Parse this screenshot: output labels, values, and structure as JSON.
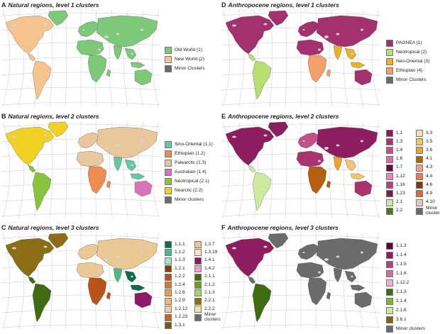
{
  "panels": [
    {
      "letter": "A",
      "title": "Natural regions, level 1 clusters",
      "legend": [
        {
          "label": "Old World (1)",
          "color": "#7ec87a"
        },
        {
          "label": "New World (2)",
          "color": "#f6c48e"
        },
        {
          "label": "Minor Clusters",
          "color": "#6b6b6b"
        }
      ]
    },
    {
      "letter": "D",
      "title": "Anthropocene regions, level 1 clusters",
      "legend": [
        {
          "label": "PAGNEA (1)",
          "color": "#a3306f"
        },
        {
          "label": "Neotropical (2)",
          "color": "#b6df6f"
        },
        {
          "label": "Neo-Oriental (3)",
          "color": "#e9b22a"
        },
        {
          "label": "Ethiopian (4)",
          "color": "#f2a06c"
        },
        {
          "label": "Minor Clusters",
          "color": "#6b6b6b"
        }
      ]
    },
    {
      "letter": "B",
      "title": "Natural regions, level 2 clusters",
      "legend": [
        {
          "label": "Sino-Oriental (1.1)",
          "color": "#62c9a2"
        },
        {
          "label": "Ethiopian (1.2)",
          "color": "#ee8c52"
        },
        {
          "label": "Palearctic (1.3)",
          "color": "#e8c79d"
        },
        {
          "label": "Australian (1.4)",
          "color": "#d873b9"
        },
        {
          "label": "Neotropical (2.1)",
          "color": "#8ac43c"
        },
        {
          "label": "Nearctic (2.2)",
          "color": "#f0d124"
        },
        {
          "label": "Minor clusters",
          "color": "#6b6b6b"
        }
      ]
    },
    {
      "letter": "E",
      "title": "Anthropocene regions, level 2 clusters",
      "legend_col1": [
        {
          "label": "1.1",
          "color": "#8e1d60"
        },
        {
          "label": "1.3",
          "color": "#a8336f"
        },
        {
          "label": "1.4",
          "color": "#c4508a"
        },
        {
          "label": "1.6",
          "color": "#d86fa2"
        },
        {
          "label": "1.7",
          "color": "#6e0b3f"
        },
        {
          "label": "1.12",
          "color": "#e889b5"
        },
        {
          "label": "1.16",
          "color": "#b23f7e"
        },
        {
          "label": "1.23",
          "color": "#7f1a4f"
        },
        {
          "label": "2.1",
          "color": "#cdeaa0"
        },
        {
          "label": "2.2",
          "color": "#4d7b1a"
        }
      ],
      "legend_col2": [
        {
          "label": "3.3",
          "color": "#f8e1b0"
        },
        {
          "label": "3.5",
          "color": "#f2c46c"
        },
        {
          "label": "3.6",
          "color": "#e9a62b"
        },
        {
          "label": "4.1",
          "color": "#b65f10"
        },
        {
          "label": "4.3",
          "color": "#f59f87"
        },
        {
          "label": "4.4",
          "color": "#ed7c4f"
        },
        {
          "label": "4.6",
          "color": "#7a3a12"
        },
        {
          "label": "4.9",
          "color": "#d86a32"
        },
        {
          "label": "4.10",
          "color": "#f9c3b8"
        },
        {
          "label": "Minor clusters",
          "color": "#6b6b6b"
        }
      ]
    },
    {
      "letter": "C",
      "title": "Natural regions, level 3 clusters",
      "legend_col1": [
        {
          "label": "1.1.1",
          "color": "#0f6b4c"
        },
        {
          "label": "1.1.2",
          "color": "#4fb889"
        },
        {
          "label": "1.1.3",
          "color": "#a7e3c6"
        },
        {
          "label": "1.2.1",
          "color": "#8a3b0a"
        },
        {
          "label": "1.2.2",
          "color": "#b8541a"
        },
        {
          "label": "1.2.4",
          "color": "#d77b33"
        },
        {
          "label": "1.2.6",
          "color": "#e99a52"
        },
        {
          "label": "1.2.9",
          "color": "#f2b57c"
        },
        {
          "label": "1.2.12",
          "color": "#f7cba1"
        },
        {
          "label": "1.2.23",
          "color": "#c2691f"
        },
        {
          "label": "1.3.1",
          "color": "#7a5a1a"
        }
      ],
      "legend_col2": [
        {
          "label": "1.3.7",
          "color": "#e9c893"
        },
        {
          "label": "1.3.19",
          "color": "#f7e7c6"
        },
        {
          "label": "1.4.1",
          "color": "#8b1a6a"
        },
        {
          "label": "1.4.2",
          "color": "#e8a1d1"
        },
        {
          "label": "2.1.1",
          "color": "#3f6b12"
        },
        {
          "label": "2.1.2",
          "color": "#6c9f2a"
        },
        {
          "label": "2.1.3",
          "color": "#a6d46a"
        },
        {
          "label": "2.2.1",
          "color": "#8a6d14"
        },
        {
          "label": "2.2.2",
          "color": "#f2e6ad"
        },
        {
          "label": "Minor clusters",
          "color": "#6b6b6b"
        }
      ]
    },
    {
      "letter": "F",
      "title": "Anthropocene regions, level 3 clusters",
      "legend": [
        {
          "label": "1.1.3",
          "color": "#5a0738"
        },
        {
          "label": "1.1.4",
          "color": "#8e1d60"
        },
        {
          "label": "1.1.5",
          "color": "#b23f7e"
        },
        {
          "label": "1.1.6",
          "color": "#d26b9c"
        },
        {
          "label": "1.12.2",
          "color": "#f0b0cf"
        },
        {
          "label": "2.1.3",
          "color": "#3f6b12"
        },
        {
          "label": "2.1.4",
          "color": "#7fb43a"
        },
        {
          "label": "2.1.6",
          "color": "#cdeaa0"
        },
        {
          "label": "3.6.1",
          "color": "#8a6014"
        },
        {
          "label": "Minor clusters",
          "color": "#6b6b6b"
        }
      ]
    }
  ],
  "maps": {
    "A": {
      "americas": "#f6c48e",
      "nafrica": "#7ec87a",
      "safrica": "#7ec87a",
      "europe": "#7ec87a",
      "asia": "#7ec87a",
      "india": "#7ec87a",
      "seasia": "#7ec87a",
      "australia": "#7ec87a",
      "greenland": "#7ec87a",
      "minor": "#6b6b6b"
    },
    "D": {
      "americas": "#b6df6f",
      "namerica": "#a3306f",
      "nafrica": "#a3306f",
      "safrica": "#f2a06c",
      "europe": "#a3306f",
      "asia": "#a3306f",
      "india": "#e9b22a",
      "seasia": "#e9b22a",
      "australia": "#a3306f",
      "greenland": "#a3306f",
      "minor": "#6b6b6b"
    },
    "B": {
      "americas": "#8ac43c",
      "namerica": "#f0d124",
      "nafrica": "#e8c79d",
      "safrica": "#ee8c52",
      "europe": "#e8c79d",
      "asia": "#e8c79d",
      "india": "#62c9a2",
      "seasia": "#62c9a2",
      "australia": "#d873b9",
      "greenland": "#f0d124",
      "minor": "#6b6b6b"
    },
    "E": {
      "americas": "#cdeaa0",
      "namerica": "#8e1d60",
      "nafrica": "#a8336f",
      "safrica": "#b65f10",
      "europe": "#c4508a",
      "asia": "#8e1d60",
      "india": "#e9a62b",
      "seasia": "#f2c46c",
      "australia": "#a8336f",
      "greenland": "#8e1d60",
      "minor": "#6b6b6b"
    },
    "C": {
      "americas": "#3f6b12",
      "namerica": "#8a6d14",
      "nafrica": "#e9c893",
      "safrica": "#b8541a",
      "europe": "#e9c893",
      "asia": "#e9c893",
      "india": "#4fb889",
      "seasia": "#0f6b4c",
      "australia": "#8b1a6a",
      "greenland": "#8a6d14",
      "minor": "#6b6b6b"
    },
    "F": {
      "americas": "#6b6b6b",
      "namerica": "#8e1d60",
      "nafrica": "#6b6b6b",
      "safrica": "#6b6b6b",
      "europe": "#6b6b6b",
      "asia": "#6b6b6b",
      "india": "#6b6b6b",
      "seasia": "#6b6b6b",
      "australia": "#6b6b6b",
      "greenland": "#6b6b6b",
      "minor": "#6b6b6b",
      "samerica": "#3f6b12"
    }
  }
}
